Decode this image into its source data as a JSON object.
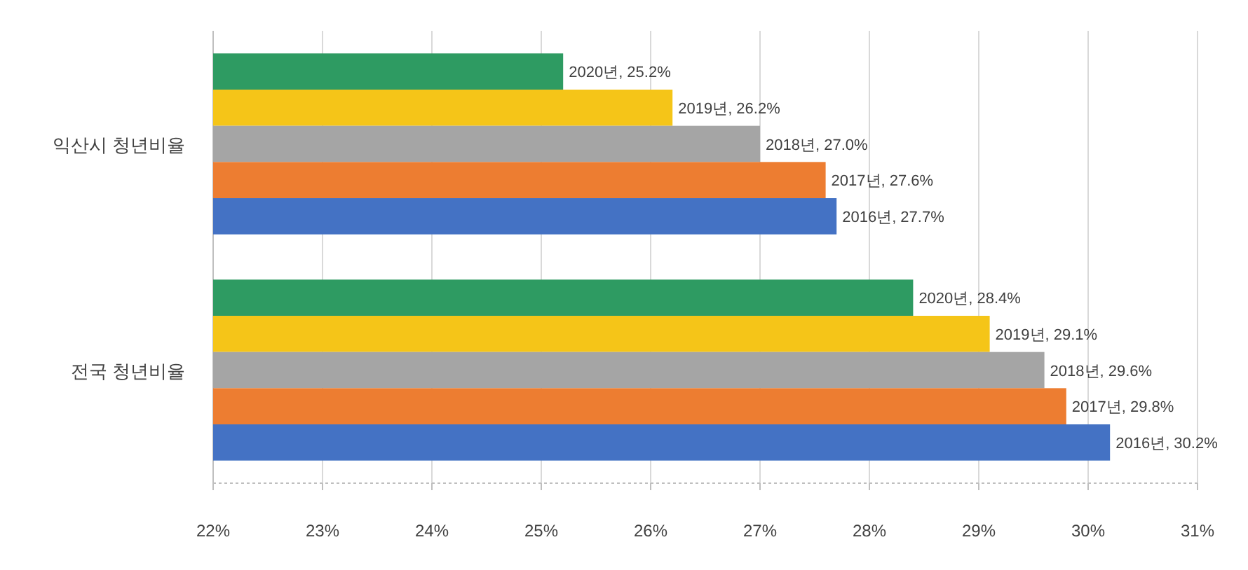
{
  "chart_data": {
    "type": "bar",
    "orientation": "horizontal",
    "categories": [
      "익산시 청년비율",
      "전국 청년비율"
    ],
    "series": [
      {
        "color": "#2e9b62",
        "values": [
          25.2,
          28.4
        ],
        "value_labels": [
          "2020년, 25.2%",
          "2020년, 28.4%"
        ]
      },
      {
        "color": "#f5c518",
        "values": [
          26.2,
          29.1
        ],
        "value_labels": [
          "2019년, 26.2%",
          "2019년, 29.1%"
        ]
      },
      {
        "color": "#a5a5a5",
        "values": [
          27.0,
          29.6
        ],
        "value_labels": [
          "2018년, 27.0%",
          "2018년, 29.6%"
        ]
      },
      {
        "color": "#ed7d31",
        "values": [
          27.6,
          29.8
        ],
        "value_labels": [
          "2017년, 27.6%",
          "2017년, 29.8%"
        ]
      },
      {
        "color": "#4472c4",
        "values": [
          27.7,
          30.2
        ],
        "value_labels": [
          "2016년, 27.7%",
          "2016년, 30.2%"
        ]
      }
    ],
    "xlim": [
      22,
      31
    ],
    "xticks": [
      {
        "value": 22,
        "label": "22%"
      },
      {
        "value": 23,
        "label": "23%"
      },
      {
        "value": 24,
        "label": "24%"
      },
      {
        "value": 25,
        "label": "25%"
      },
      {
        "value": 26,
        "label": "26%"
      },
      {
        "value": 27,
        "label": "27%"
      },
      {
        "value": 28,
        "label": "28%"
      },
      {
        "value": 29,
        "label": "29%"
      },
      {
        "value": 30,
        "label": "30%"
      },
      {
        "value": 31,
        "label": "31%"
      }
    ],
    "grid": "x"
  }
}
